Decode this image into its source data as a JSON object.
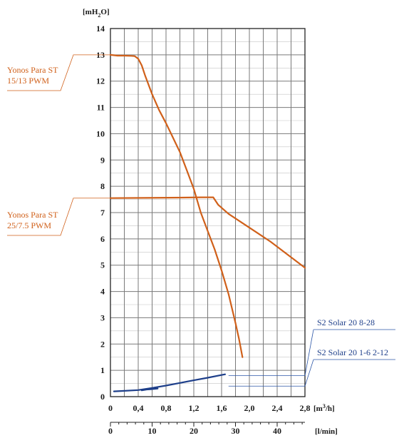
{
  "chart_data": {
    "type": "line",
    "y_axis": {
      "unit": "[mH",
      "unit_sub": "2",
      "unit_end": "O]",
      "ticks": [
        "0",
        "1",
        "2",
        "3",
        "4",
        "5",
        "6",
        "7",
        "8",
        "9",
        "10",
        "11",
        "12",
        "13",
        "14"
      ],
      "range": [
        0,
        14
      ]
    },
    "x_axis_primary": {
      "unit": "[m",
      "unit_sup": "3",
      "unit_end": "/h]",
      "ticks": [
        "0",
        "0,4",
        "0,8",
        "1,2",
        "1,6",
        "2,0",
        "2,4",
        "2,8"
      ],
      "tick_values": [
        0,
        0.4,
        0.8,
        1.2,
        1.6,
        2.0,
        2.4,
        2.8
      ],
      "range": [
        0,
        2.8
      ]
    },
    "x_axis_secondary": {
      "unit": "[l/min]",
      "ticks": [
        "0",
        "10",
        "20",
        "30",
        "40"
      ],
      "tick_values": [
        0,
        10,
        20,
        30,
        40
      ]
    },
    "series": [
      {
        "name": "Yonos Para ST 15/13 PWM",
        "label_lines": [
          "Yonos Para ST",
          "15/13 PWM"
        ],
        "color": "#d0601a",
        "points": [
          [
            0,
            13.0
          ],
          [
            0.1,
            12.97
          ],
          [
            0.2,
            12.97
          ],
          [
            0.3,
            12.96
          ],
          [
            0.35,
            12.95
          ],
          [
            0.4,
            12.85
          ],
          [
            0.45,
            12.6
          ],
          [
            0.5,
            12.2
          ],
          [
            0.6,
            11.5
          ],
          [
            0.7,
            10.9
          ],
          [
            0.8,
            10.4
          ],
          [
            0.9,
            9.85
          ],
          [
            1.0,
            9.3
          ],
          [
            1.1,
            8.6
          ],
          [
            1.2,
            7.9
          ],
          [
            1.3,
            7.0
          ],
          [
            1.4,
            6.3
          ],
          [
            1.5,
            5.6
          ],
          [
            1.6,
            4.8
          ],
          [
            1.7,
            3.9
          ],
          [
            1.8,
            2.8
          ],
          [
            1.85,
            2.2
          ],
          [
            1.9,
            1.5
          ]
        ]
      },
      {
        "name": "Yonos Para ST 25/7.5 PWM",
        "label_lines": [
          "Yonos Para ST",
          "25/7.5 PWM"
        ],
        "color": "#d0601a",
        "points": [
          [
            0,
            7.55
          ],
          [
            0.5,
            7.56
          ],
          [
            1.0,
            7.57
          ],
          [
            1.3,
            7.58
          ],
          [
            1.48,
            7.58
          ],
          [
            1.55,
            7.3
          ],
          [
            1.7,
            6.95
          ],
          [
            1.9,
            6.6
          ],
          [
            2.1,
            6.25
          ],
          [
            2.3,
            5.9
          ],
          [
            2.5,
            5.5
          ],
          [
            2.7,
            5.1
          ],
          [
            2.8,
            4.9
          ]
        ]
      },
      {
        "name": "S2 Solar 20 8-28",
        "label_lines": [
          "S2 Solar 20  8-28"
        ],
        "color": "#1e3f8a",
        "points": [
          [
            0.05,
            0.2
          ],
          [
            0.2,
            0.22
          ],
          [
            0.4,
            0.25
          ],
          [
            0.6,
            0.33
          ],
          [
            0.8,
            0.42
          ],
          [
            1.0,
            0.52
          ],
          [
            1.2,
            0.62
          ],
          [
            1.4,
            0.72
          ],
          [
            1.65,
            0.85
          ]
        ]
      },
      {
        "name": "S2 Solar 20 1-6 2-12",
        "label_lines": [
          "S2 Solar 20  1-6  2-12"
        ],
        "color": "#1e3f8a",
        "points": [
          [
            0.45,
            0.24
          ],
          [
            0.52,
            0.27
          ],
          [
            0.58,
            0.28
          ],
          [
            0.68,
            0.31
          ]
        ]
      }
    ],
    "grid": true
  }
}
